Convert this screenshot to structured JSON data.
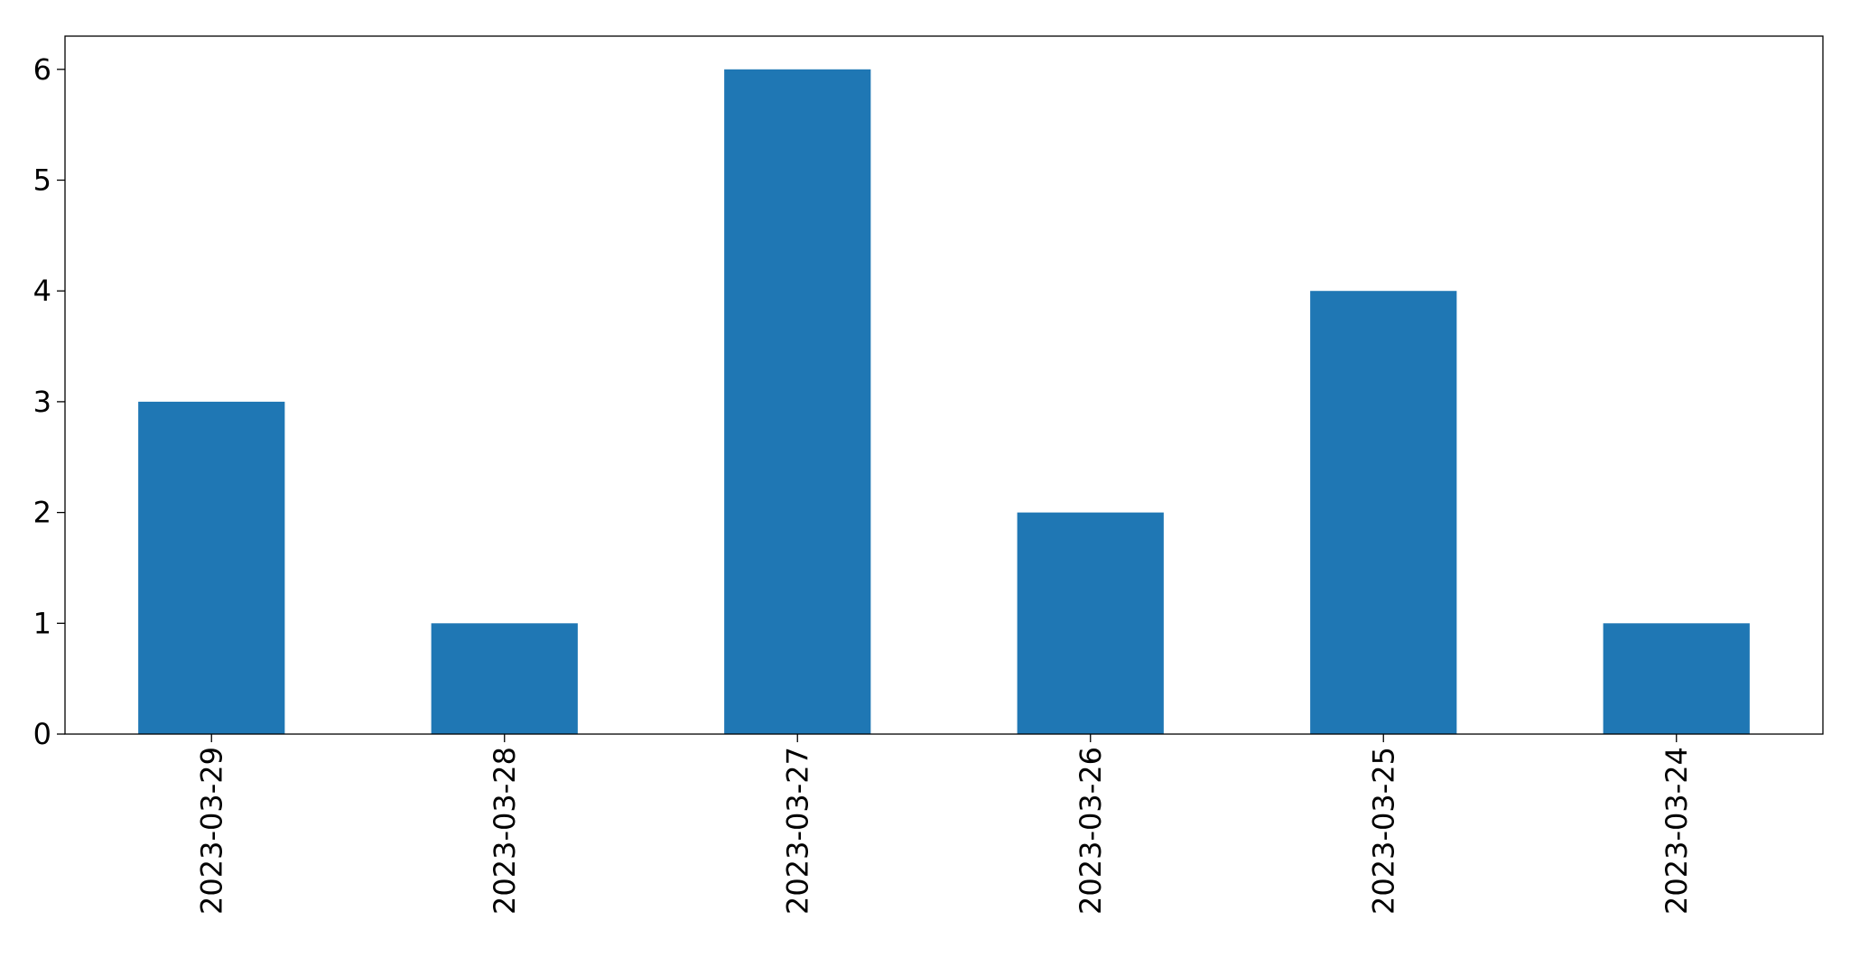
{
  "chart_data": {
    "type": "bar",
    "title": "",
    "xlabel": "",
    "ylabel": "",
    "categories": [
      "2023-03-29",
      "2023-03-28",
      "2023-03-27",
      "2023-03-26",
      "2023-03-25",
      "2023-03-24"
    ],
    "values": [
      3,
      1,
      6,
      2,
      4,
      1
    ],
    "ylim": [
      0,
      6.3
    ],
    "yticks": [
      0,
      1,
      2,
      3,
      4,
      5,
      6
    ],
    "bar_color": "#1f77b4",
    "grid": false,
    "legend": false,
    "x_tick_rotation": "vertical"
  }
}
